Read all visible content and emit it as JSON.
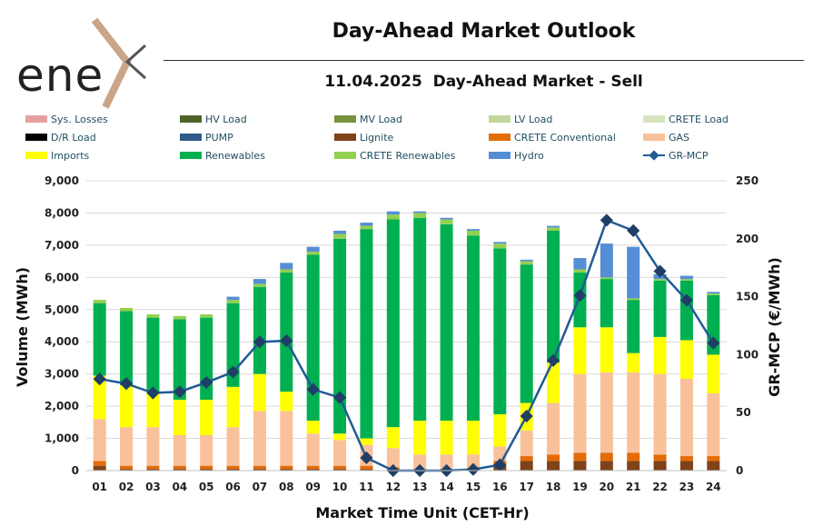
{
  "header": {
    "logo_text": "ene",
    "title": "Day-Ahead Market Outlook",
    "subtitle": "11.04.2025  Day-Ahead Market - Sell"
  },
  "chart_data": {
    "type": "bar",
    "stacked": true,
    "categories": [
      "01",
      "02",
      "03",
      "04",
      "05",
      "06",
      "07",
      "08",
      "09",
      "10",
      "11",
      "12",
      "13",
      "14",
      "15",
      "16",
      "17",
      "18",
      "19",
      "20",
      "21",
      "22",
      "23",
      "24"
    ],
    "xlabel": "Market Time Unit (CET-Hr)",
    "ylabel": "Volume (MWh)",
    "y2label": "GR-MCP (€/MWh)",
    "ylim": [
      0,
      9000
    ],
    "y2lim": [
      0,
      250
    ],
    "yticks": [
      "0",
      "1,000",
      "2,000",
      "3,000",
      "4,000",
      "5,000",
      "6,000",
      "7,000",
      "8,000",
      "9,000"
    ],
    "y2ticks": [
      "0",
      "50",
      "100",
      "150",
      "200",
      "250"
    ],
    "legend": [
      {
        "name": "Sys. Losses",
        "color": "#e6a0a0",
        "kind": "bar"
      },
      {
        "name": "HV Load",
        "color": "#4f6228",
        "kind": "bar"
      },
      {
        "name": "MV Load",
        "color": "#77933c",
        "kind": "bar"
      },
      {
        "name": "LV Load",
        "color": "#c3d69b",
        "kind": "bar"
      },
      {
        "name": "CRETE Load",
        "color": "#d7e4bd",
        "kind": "bar"
      },
      {
        "name": "D/R Load",
        "color": "#000000",
        "kind": "bar"
      },
      {
        "name": "PUMP",
        "color": "#2e5c8a",
        "kind": "bar"
      },
      {
        "name": "Lignite",
        "color": "#7f4219",
        "kind": "bar"
      },
      {
        "name": "CRETE Conventional",
        "color": "#e36c09",
        "kind": "bar"
      },
      {
        "name": "GAS",
        "color": "#f8c19a",
        "kind": "bar"
      },
      {
        "name": "Imports",
        "color": "#ffff00",
        "kind": "bar"
      },
      {
        "name": "Renewables",
        "color": "#00b050",
        "kind": "bar"
      },
      {
        "name": "CRETE Renewables",
        "color": "#92d050",
        "kind": "bar"
      },
      {
        "name": "Hydro",
        "color": "#558ed5",
        "kind": "bar"
      },
      {
        "name": "GR-MCP",
        "color": "#1f5a94",
        "kind": "line"
      }
    ],
    "stack_order": [
      "Lignite",
      "CRETE Conventional",
      "GAS",
      "Imports",
      "Renewables",
      "CRETE Renewables",
      "Hydro"
    ],
    "series": [
      {
        "name": "Lignite",
        "values": [
          150,
          50,
          50,
          50,
          50,
          50,
          50,
          50,
          50,
          50,
          50,
          0,
          0,
          0,
          0,
          200,
          300,
          300,
          300,
          300,
          300,
          300,
          300,
          300
        ]
      },
      {
        "name": "CRETE Conventional",
        "values": [
          150,
          100,
          100,
          100,
          100,
          100,
          100,
          100,
          100,
          100,
          100,
          100,
          50,
          50,
          50,
          100,
          150,
          200,
          250,
          250,
          250,
          200,
          150,
          150
        ]
      },
      {
        "name": "GAS",
        "values": [
          1300,
          1200,
          1200,
          950,
          950,
          1200,
          1700,
          1700,
          1000,
          800,
          650,
          600,
          450,
          450,
          450,
          450,
          800,
          1600,
          2450,
          2500,
          2500,
          2500,
          2400,
          1950
        ]
      },
      {
        "name": "Imports",
        "values": [
          1350,
          1300,
          1050,
          1100,
          1100,
          1250,
          1150,
          600,
          400,
          200,
          200,
          650,
          1050,
          1050,
          1050,
          1000,
          850,
          1250,
          1450,
          1400,
          600,
          1150,
          1200,
          1200
        ]
      },
      {
        "name": "Renewables",
        "values": [
          2250,
          2300,
          2350,
          2500,
          2550,
          2600,
          2700,
          3700,
          5150,
          6050,
          6500,
          6450,
          6300,
          6100,
          5750,
          5150,
          4300,
          4100,
          1700,
          1500,
          1650,
          1750,
          1850,
          1850
        ]
      },
      {
        "name": "CRETE Renewables",
        "values": [
          100,
          100,
          100,
          100,
          100,
          100,
          100,
          100,
          100,
          150,
          100,
          150,
          150,
          150,
          150,
          150,
          100,
          100,
          100,
          50,
          50,
          50,
          50,
          50
        ]
      },
      {
        "name": "Hydro",
        "values": [
          0,
          0,
          0,
          0,
          0,
          100,
          150,
          200,
          150,
          100,
          100,
          100,
          50,
          50,
          50,
          50,
          50,
          50,
          350,
          1050,
          1600,
          150,
          100,
          50
        ]
      }
    ],
    "line": {
      "name": "GR-MCP",
      "values": [
        79,
        75,
        67,
        68,
        76,
        85,
        111,
        112,
        70,
        63,
        11,
        0,
        0,
        0,
        1,
        5,
        47,
        95,
        151,
        216,
        207,
        172,
        147,
        110
      ]
    }
  }
}
